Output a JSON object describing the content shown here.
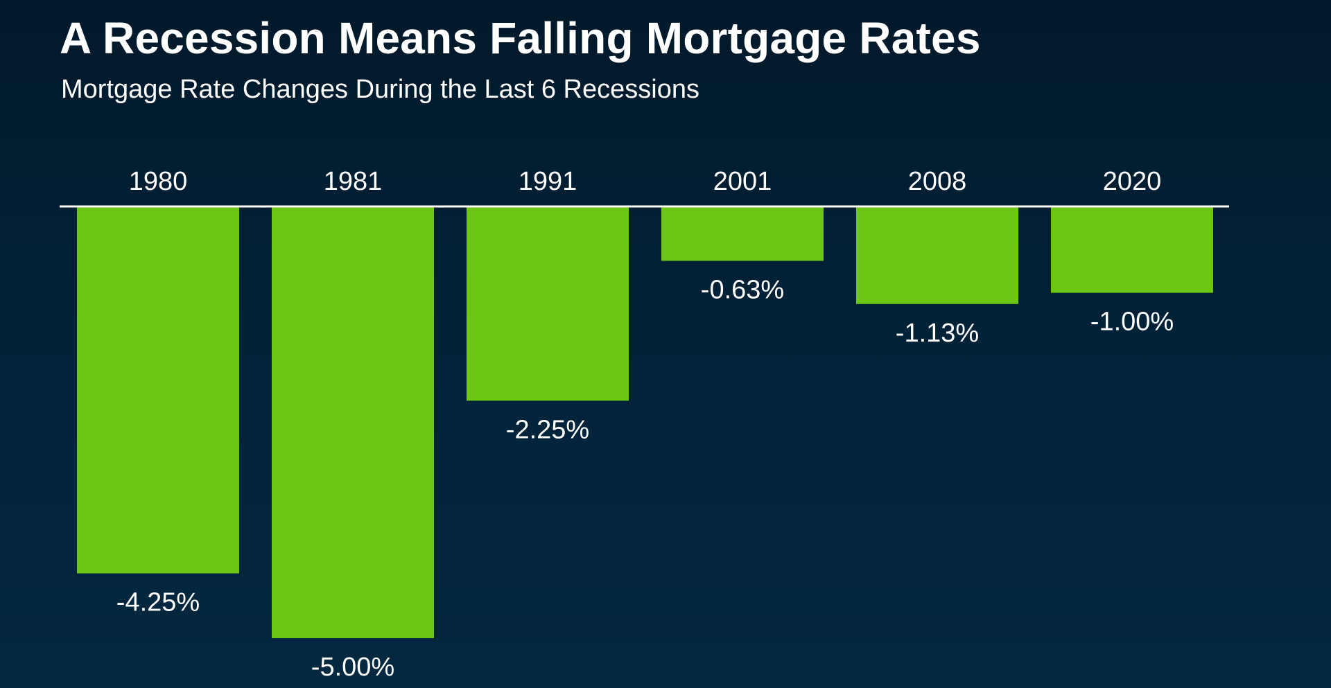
{
  "title": "A Recession Means Falling Mortgage Rates",
  "subtitle": "Mortgage Rate Changes During the Last 6 Recessions",
  "colors": {
    "bar": "#6cc614",
    "axis": "#ffffff",
    "text": "#ffffff",
    "background_top": "#01192a",
    "background_bottom": "#04283f"
  },
  "chart_data": {
    "type": "bar",
    "title": "A Recession Means Falling Mortgage Rates",
    "subtitle": "Mortgage Rate Changes During the Last 6 Recessions",
    "categories": [
      "1980",
      "1981",
      "1991",
      "2001",
      "2008",
      "2020"
    ],
    "values": [
      -4.25,
      -5.0,
      -2.25,
      -0.63,
      -1.13,
      -1.0
    ],
    "data_labels": [
      "-4.25%",
      "-5.00%",
      "-2.25%",
      "-0.63%",
      "-1.13%",
      "-1.00%"
    ],
    "ylim": [
      -5.0,
      0
    ],
    "grid": false,
    "category_axis_position": "top"
  }
}
